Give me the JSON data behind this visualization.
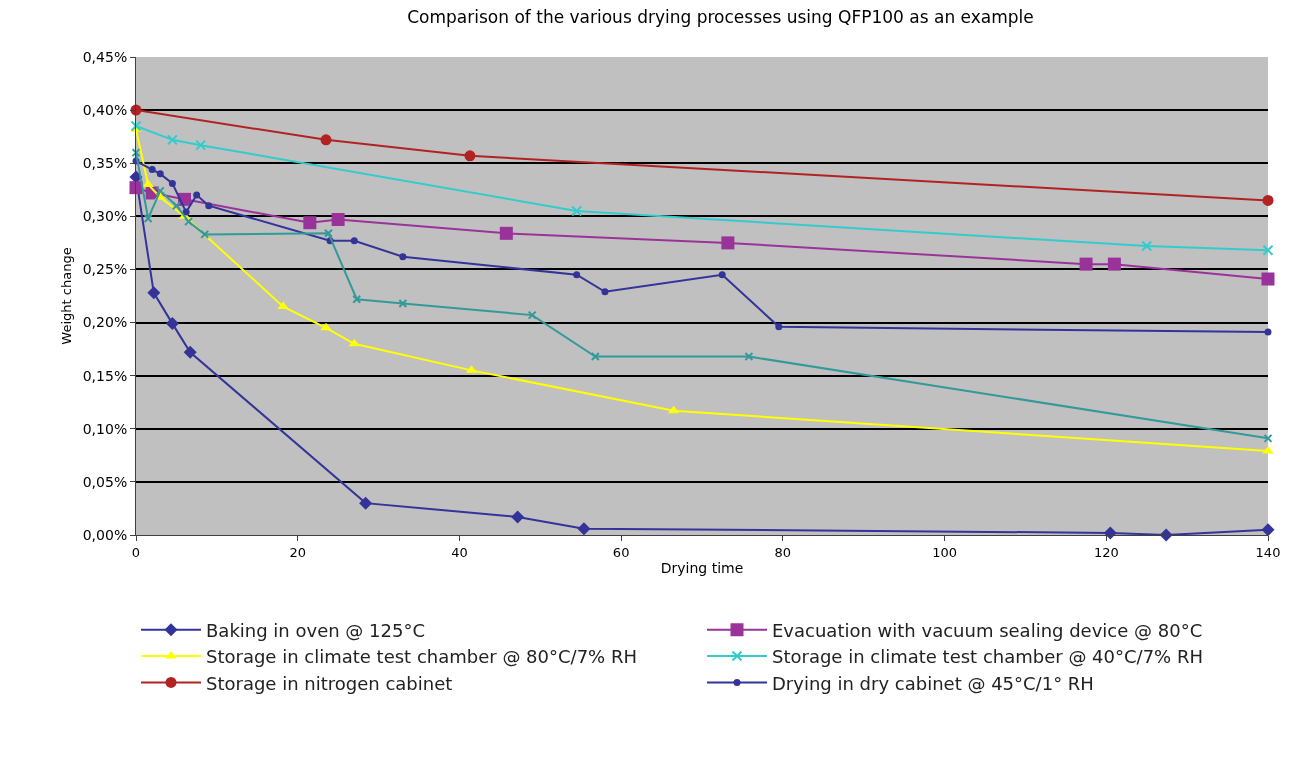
{
  "chart_data": {
    "type": "line",
    "title": "Comparison of the various drying processes using QFP100 as an example",
    "xlabel": "Drying time",
    "ylabel": "Weight change",
    "xlim": [
      0,
      140
    ],
    "xticks": [
      0,
      20,
      40,
      60,
      80,
      100,
      120,
      140
    ],
    "ylim": [
      0,
      0.45
    ],
    "yticks": [
      {
        "value": 0,
        "label": "0,00%"
      },
      {
        "value": 0.05,
        "label": "0,05%"
      },
      {
        "value": 0.1,
        "label": "0,10%"
      },
      {
        "value": 0.15,
        "label": "0,15%"
      },
      {
        "value": 0.2,
        "label": "0,20%"
      },
      {
        "value": 0.25,
        "label": "0,25%"
      },
      {
        "value": 0.3,
        "label": "0,30%"
      },
      {
        "value": 0.35,
        "label": "0,35%"
      },
      {
        "value": 0.4,
        "label": "0,40%"
      },
      {
        "value": 0.45,
        "label": "0,45%"
      }
    ],
    "grid": "y",
    "legend": "bottom",
    "line_style": "solid",
    "series": [
      {
        "name": "Baking in oven @ 125°C",
        "color": "#333399",
        "marker": "diamond",
        "x": [
          0,
          2.2,
          4.5,
          6.7,
          28.4,
          47.2,
          55.4,
          120.5,
          127.4,
          140
        ],
        "values": [
          0.337,
          0.228,
          0.199,
          0.172,
          0.03,
          0.017,
          0.006,
          0.002,
          0,
          0.005
        ]
      },
      {
        "name": "Evacuation with vacuum sealing device @ 80°C",
        "color": "#993399",
        "marker": "square",
        "x": [
          0,
          2,
          6,
          21.5,
          25,
          45.8,
          73.2,
          117.5,
          121,
          140
        ],
        "values": [
          0.327,
          0.322,
          0.316,
          0.294,
          0.297,
          0.284,
          0.275,
          0.255,
          0.255,
          0.241
        ]
      },
      {
        "name": "Storage in climate test chamber @ 80°C/7% RH",
        "color": "#ffff00",
        "marker": "triangle",
        "x": [
          0,
          1.5,
          3,
          6,
          18.2,
          23.5,
          27,
          41.5,
          66.5,
          140
        ],
        "values": [
          0.382,
          0.33,
          0.318,
          0.3,
          0.215,
          0.195,
          0.18,
          0.155,
          0.117,
          0.079
        ]
      },
      {
        "name": "Storage in climate test chamber @ 40°C/7% RH",
        "color": "#33cccc",
        "marker": "cross",
        "x": [
          0,
          4.5,
          8,
          54.5,
          125,
          140
        ],
        "values": [
          0.385,
          0.372,
          0.367,
          0.305,
          0.272,
          0.268
        ]
      },
      {
        "name": "Storage in nitrogen cabinet",
        "color": "#b22222",
        "marker": "circle",
        "x": [
          0,
          23.5,
          41.3,
          140
        ],
        "values": [
          0.4,
          0.372,
          0.357,
          0.315
        ]
      },
      {
        "name": "Drying in dry cabinet @ 45°C/1° RH",
        "color": "#333399",
        "marker": "circle",
        "x": [
          0,
          2,
          3,
          4.5,
          6.2,
          7.5,
          9,
          24,
          27,
          33,
          54.5,
          58,
          72.5,
          79.5,
          140
        ],
        "values": [
          0.352,
          0.344,
          0.34,
          0.331,
          0.304,
          0.32,
          0.31,
          0.277,
          0.277,
          0.262,
          0.245,
          0.229,
          0.245,
          0.196,
          0.191
        ]
      },
      {
        "color": "#339999",
        "marker": "cross",
        "x": [
          0,
          1.5,
          3,
          5,
          6.5,
          8.5,
          23.8,
          27.3,
          33,
          49,
          56.8,
          75.8,
          140
        ],
        "values": [
          0.36,
          0.298,
          0.324,
          0.31,
          0.295,
          0.283,
          0.284,
          0.222,
          0.218,
          0.207,
          0.168,
          0.168,
          0.091
        ]
      }
    ]
  }
}
